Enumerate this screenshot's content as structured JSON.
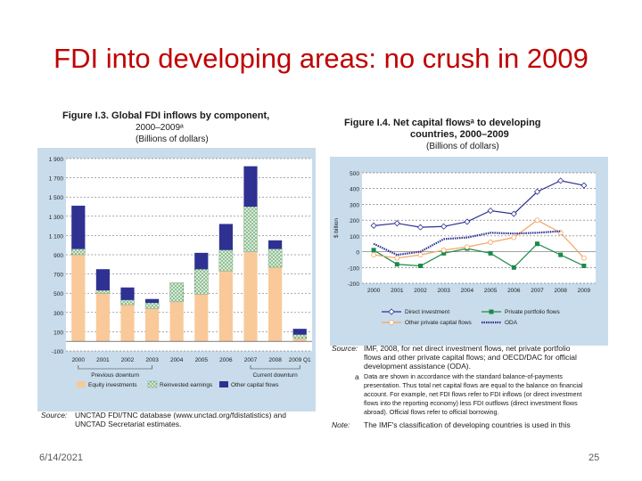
{
  "slide": {
    "title": "FDI into developing areas: no crush in 2009",
    "date": "6/14/2021",
    "page": "25"
  },
  "colors": {
    "title": "#c00000",
    "equity": "#f9c99a",
    "reinvested": "#d7ebd2",
    "other": "#2e3192",
    "grid_bg": "#c9dceb",
    "direct": "#2e3192",
    "private_portfolio": "#1a8a4a",
    "other_private": "#f4a460",
    "oda": "#2e3192"
  },
  "figures": {
    "left": {
      "heading": "Figure I.3.  Global FDI inflows by component,",
      "heading2": "2000–2009ᵃ",
      "unit": "(Billions of dollars)",
      "source_label": "Source:",
      "source_text": "UNCTAD FDI/TNC database (www.unctad.org/fdistatistics) and",
      "source_text2": "UNCTAD Secretariat estimates.",
      "downturn_prev": "Previous downturn",
      "downturn_curr": "Current downturn"
    },
    "right": {
      "heading": "Figure I.4.  Net capital flowsᵃ to developing",
      "heading2": "countries, 2000–2009",
      "unit": "(Billions of dollars)",
      "source_label": "Source:",
      "source_lines": [
        "IMF, 2008, for net direct investment flows, net private portfolio",
        "flows and other private capital flows; and OECD/DAC for official",
        "development assistance (ODA)."
      ],
      "note_a_label": "a",
      "note_a_lines": [
        "Data are shown in accordance with the standard balance-of-payments",
        "presentation. Thus total net capital flows are equal to the balance on financial",
        "account. For example, net FDI flows refer to FDI inflows (or direct investment",
        "flows into the reporting economy) less FDI outflows (direct investment flows",
        "abroad). Official flows refer to official borrowing."
      ],
      "note_label": "Note:",
      "note_text": "The IMF's classification of developing countries is used in this"
    }
  },
  "chart_data": [
    {
      "type": "bar",
      "stacked": true,
      "categories": [
        "2000",
        "2001",
        "2002",
        "2003",
        "2004",
        "2005",
        "2006",
        "2007",
        "2008",
        "2009 Q1"
      ],
      "series": [
        {
          "name": "Equity investments",
          "values": [
            900,
            500,
            380,
            340,
            410,
            490,
            730,
            930,
            770,
            30
          ]
        },
        {
          "name": "Reinvested earnings",
          "values": [
            60,
            30,
            50,
            60,
            200,
            260,
            220,
            470,
            190,
            40
          ]
        },
        {
          "name": "Other capital flows",
          "values": [
            450,
            220,
            130,
            40,
            0,
            170,
            270,
            420,
            90,
            60
          ]
        }
      ],
      "ylim": [
        0,
        1900
      ],
      "yticks": [
        "1 900",
        "1 700",
        "1 500",
        "1 300",
        "1 100",
        "900",
        "700",
        "500",
        "300",
        "100",
        "-100"
      ],
      "ytick_values": [
        1900,
        1700,
        1500,
        1300,
        1100,
        900,
        700,
        500,
        300,
        100,
        -100
      ],
      "legend_position": "bottom",
      "grid": true
    },
    {
      "type": "line",
      "x": [
        "2000",
        "2001",
        "2002",
        "2003",
        "2004",
        "2005",
        "2006",
        "2007",
        "2008",
        "2009"
      ],
      "series": [
        {
          "name": "Direct investment",
          "values": [
            165,
            180,
            155,
            160,
            190,
            260,
            240,
            380,
            450,
            420
          ]
        },
        {
          "name": "Private portfolio flows",
          "values": [
            10,
            -80,
            -90,
            -10,
            20,
            -10,
            -100,
            50,
            -20,
            -90
          ]
        },
        {
          "name": "Other private capital flows",
          "values": [
            -20,
            -40,
            -20,
            10,
            30,
            60,
            90,
            200,
            120,
            -40
          ]
        },
        {
          "name": "ODA",
          "values": [
            50,
            -20,
            0,
            80,
            90,
            120,
            115,
            120,
            130,
            null
          ]
        }
      ],
      "ylim": [
        -200,
        500
      ],
      "yticks": [
        "500",
        "400",
        "300",
        "200",
        "100",
        "0",
        "-100",
        "-200"
      ],
      "ytick_values": [
        500,
        400,
        300,
        200,
        100,
        0,
        -100,
        -200
      ],
      "ylabel": "$ billion",
      "legend_position": "bottom",
      "grid": true
    }
  ]
}
